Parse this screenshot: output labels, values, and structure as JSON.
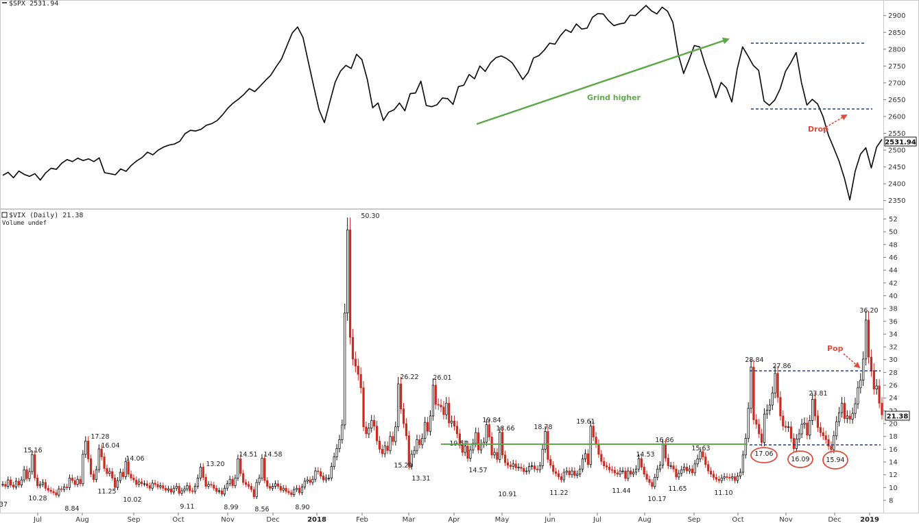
{
  "chart_data": [
    {
      "type": "line",
      "header": "$SPX 2531.94",
      "last_value_label": "2531.94",
      "yticks": [
        2350,
        2400,
        2450,
        2500,
        2550,
        2600,
        2650,
        2700,
        2750,
        2800,
        2850,
        2900
      ],
      "ylim": [
        2335,
        2930
      ],
      "series": [
        {
          "values": [
            2425,
            2434,
            2418,
            2438,
            2428,
            2422,
            2430,
            2411,
            2432,
            2446,
            2443,
            2461,
            2472,
            2466,
            2476,
            2469,
            2474,
            2466,
            2477,
            2433,
            2430,
            2427,
            2444,
            2437,
            2455,
            2468,
            2478,
            2494,
            2486,
            2500,
            2509,
            2515,
            2518,
            2526,
            2549,
            2559,
            2557,
            2562,
            2574,
            2579,
            2588,
            2605,
            2625,
            2640,
            2652,
            2666,
            2683,
            2674,
            2690,
            2707,
            2723,
            2748,
            2771,
            2810,
            2848,
            2866,
            2835,
            2762,
            2690,
            2620,
            2582,
            2642,
            2702,
            2735,
            2752,
            2743,
            2785,
            2769,
            2710,
            2626,
            2640,
            2588,
            2613,
            2620,
            2640,
            2617,
            2668,
            2670,
            2705,
            2633,
            2629,
            2635,
            2655,
            2653,
            2636,
            2689,
            2693,
            2725,
            2712,
            2750,
            2734,
            2760,
            2775,
            2780,
            2772,
            2760,
            2736,
            2710,
            2731,
            2774,
            2781,
            2797,
            2818,
            2815,
            2840,
            2858,
            2850,
            2875,
            2860,
            2863,
            2895,
            2906,
            2905,
            2885,
            2870,
            2875,
            2878,
            2901,
            2900,
            2915,
            2930,
            2914,
            2905,
            2925,
            2913,
            2880,
            2785,
            2728,
            2768,
            2811,
            2807,
            2755,
            2710,
            2656,
            2701,
            2685,
            2643,
            2741,
            2807,
            2780,
            2752,
            2737,
            2646,
            2633,
            2649,
            2682,
            2734,
            2760,
            2790,
            2700,
            2634,
            2651,
            2637,
            2600,
            2545,
            2507,
            2467,
            2416,
            2352,
            2437,
            2488,
            2507,
            2447,
            2509,
            2532
          ]
        }
      ],
      "annotations": [
        {
          "text": "Grind higher",
          "color": "#5ea84a"
        },
        {
          "text": "Drop",
          "color": "#e04a3a"
        }
      ],
      "reference_levels": [
        2812,
        2622
      ]
    },
    {
      "type": "candlestick",
      "header": "$VIX (Daily) 21.38",
      "subheader": "Volume undef",
      "last_value_label": "21.38",
      "yticks": [
        8,
        10,
        12,
        14,
        16,
        18,
        20,
        22,
        24,
        26,
        28,
        30,
        32,
        34,
        36,
        38,
        40,
        42,
        44,
        46,
        48,
        50,
        52
      ],
      "ylim": [
        6.5,
        52.8
      ],
      "series": [
        {
          "values": [
            10.5,
            10.2,
            11.2,
            10.4,
            10.1,
            11,
            10.4,
            11.2,
            12.8,
            11.4,
            12.5,
            15.16,
            11.5,
            10.28,
            10.5,
            10.8,
            9.9,
            9.6,
            9.4,
            9.2,
            8.84,
            9.8,
            9.7,
            10.1,
            10,
            11.5,
            11.1,
            10.5,
            11.3,
            10.6,
            15.2,
            17.28,
            14.5,
            12.1,
            11.25,
            12.8,
            16.04,
            14.8,
            13,
            12.2,
            12.5,
            11.5,
            10.02,
            11.1,
            12.4,
            11.7,
            14.06,
            12.1,
            11.5,
            11.2,
            10.5,
            10.9,
            10.6,
            10.6,
            10.3,
            9.9,
            10.7,
            10.5,
            10.1,
            10.3,
            9.9,
            9.6,
            9.8,
            9.3,
            9.9,
            10.2,
            9.11,
            9.5,
            9.8,
            10.3,
            9.5,
            9.4,
            10.2,
            11.5,
            13.2,
            11.6,
            10.2,
            10.5,
            10.4,
            9.9,
            9.4,
            9.5,
            8.99,
            9.9,
            10.6,
            11.3,
            10.3,
            11.5,
            14.51,
            12.2,
            10.8,
            10.5,
            10.2,
            9.7,
            8.56,
            10.8,
            11.5,
            14.58,
            11.1,
            10.2,
            9.9,
            10.2,
            10.6,
            10.2,
            9.6,
            9.9,
            9.4,
            9.2,
            8.9,
            9.7,
            9.9,
            9.2,
            10.1,
            11,
            11.2,
            10.8,
            11.3,
            12.6,
            12.5,
            11.8,
            11.2,
            11.5,
            11.5,
            13.3,
            14.8,
            16.1,
            17.5,
            19.8,
            37.3,
            50.3,
            33.5,
            30.1,
            29,
            27.7,
            25.6,
            19.5,
            18.4,
            19.3,
            20.5,
            19.6,
            17.3,
            16,
            15.29,
            16.5,
            15.8,
            18,
            17.2,
            19.5,
            26.22,
            22.3,
            20,
            18.1,
            13.31,
            15.2,
            15.8,
            17.5,
            16.7,
            17.7,
            20.2,
            18.8,
            21.2,
            26.01,
            23,
            22.9,
            22.6,
            21.4,
            23.2,
            20.1,
            20.4,
            19.6,
            18.4,
            16.7,
            15.5,
            16.5,
            14.57,
            15.9,
            16.9,
            18.6,
            15.9,
            16.8,
            17.1,
            19.84,
            17.9,
            15.1,
            15.5,
            14.4,
            18.66,
            15.1,
            13.9,
            13.5,
            13.3,
            13.7,
            13.1,
            13.2,
            13,
            12.5,
            12.6,
            13.3,
            13.4,
            12.9,
            12.8,
            13.4,
            16,
            18.78,
            14.4,
            13.5,
            12.5,
            12.2,
            11.7,
            11.22,
            12.4,
            12.6,
            12,
            12.6,
            11.9,
            12.1,
            12.9,
            14.5,
            15.3,
            13.6,
            19.61,
            17.9,
            16.8,
            15.2,
            14.1,
            13.4,
            13.2,
            12.8,
            12.7,
            12.3,
            12.1,
            12.6,
            12.6,
            11.44,
            12.6,
            12.1,
            12.4,
            12.9,
            14.53,
            13.2,
            12.1,
            11.3,
            10.8,
            10.17,
            11.6,
            12.9,
            13.5,
            16.86,
            14.6,
            13.4,
            13.4,
            12.9,
            11.65,
            12.2,
            12.8,
            13.2,
            12.6,
            12.9,
            12.3,
            13.7,
            14.5,
            15.63,
            14.8,
            13.6,
            12.6,
            12.1,
            11.6,
            11.3,
            11.1,
            11.5,
            11.7,
            11.6,
            11.5,
            11.7,
            11.1,
            11.8,
            12.4,
            15.1,
            17.7,
            22.4,
            28.84,
            20.6,
            19.9,
            18.4,
            17.06,
            21.5,
            22.1,
            22.9,
            24.8,
            27.86,
            24.1,
            21.2,
            19.6,
            19.4,
            19.5,
            17.7,
            16.09,
            17.6,
            18.4,
            19.9,
            20.1,
            18.2,
            20.5,
            23.81,
            21.2,
            19.4,
            18.6,
            18.1,
            17.5,
            16.5,
            15.94,
            18.1,
            20.3,
            21.7,
            23.2,
            20.8,
            21.2,
            20.7,
            21.6,
            23.1,
            25.6,
            26.8,
            30.1,
            36.2,
            30.4,
            28.3,
            25.4,
            25.9,
            23.2,
            21.38
          ]
        }
      ],
      "labeled_values": [
        "50.30",
        "36.20",
        "28.84",
        "27.86",
        "26.22",
        "26.01",
        "23.81",
        "19.84",
        "19.61",
        "19.57",
        "18.78",
        "18.66",
        "17.28",
        "17.06",
        "16.86",
        "16.09",
        "16.04",
        "15.94",
        "15.63",
        "15.29",
        "15.16",
        "14.58",
        "14.57",
        "14.53",
        "14.51",
        "14.06",
        "13.31",
        "13.20",
        "11.65",
        "11.44",
        "11.25",
        "11.22",
        "11.10",
        "10.91",
        "10.28",
        "10.17",
        "10.02",
        "9.11",
        "8.99",
        "8.90",
        "8.84",
        "8.56",
        "37"
      ],
      "annotations": [
        {
          "text": "Pop",
          "color": "#e04a3a"
        }
      ],
      "reference_levels": [
        28.1,
        17.0
      ],
      "support_line_value": 17.2,
      "circled_lows": [
        "17.06",
        "16.09",
        "15.94"
      ]
    }
  ],
  "xaxis": {
    "ticks": [
      "Jul",
      "Aug",
      "Sep",
      "Oct",
      "Nov",
      "Dec",
      "2018",
      "Feb",
      "Mar",
      "Apr",
      "May",
      "Jun",
      "Jul",
      "Aug",
      "Sep",
      "Oct",
      "Nov",
      "Dec",
      "2019"
    ]
  },
  "colors": {
    "up_candle": "#111111",
    "down_candle": "#cc2a1e",
    "spx_line": "#111111",
    "trend_arrow": "#5ea84a",
    "support_line": "#5ea84a",
    "reference_dash": "#1f3f7a",
    "annotation_red": "#e04a3a"
  }
}
